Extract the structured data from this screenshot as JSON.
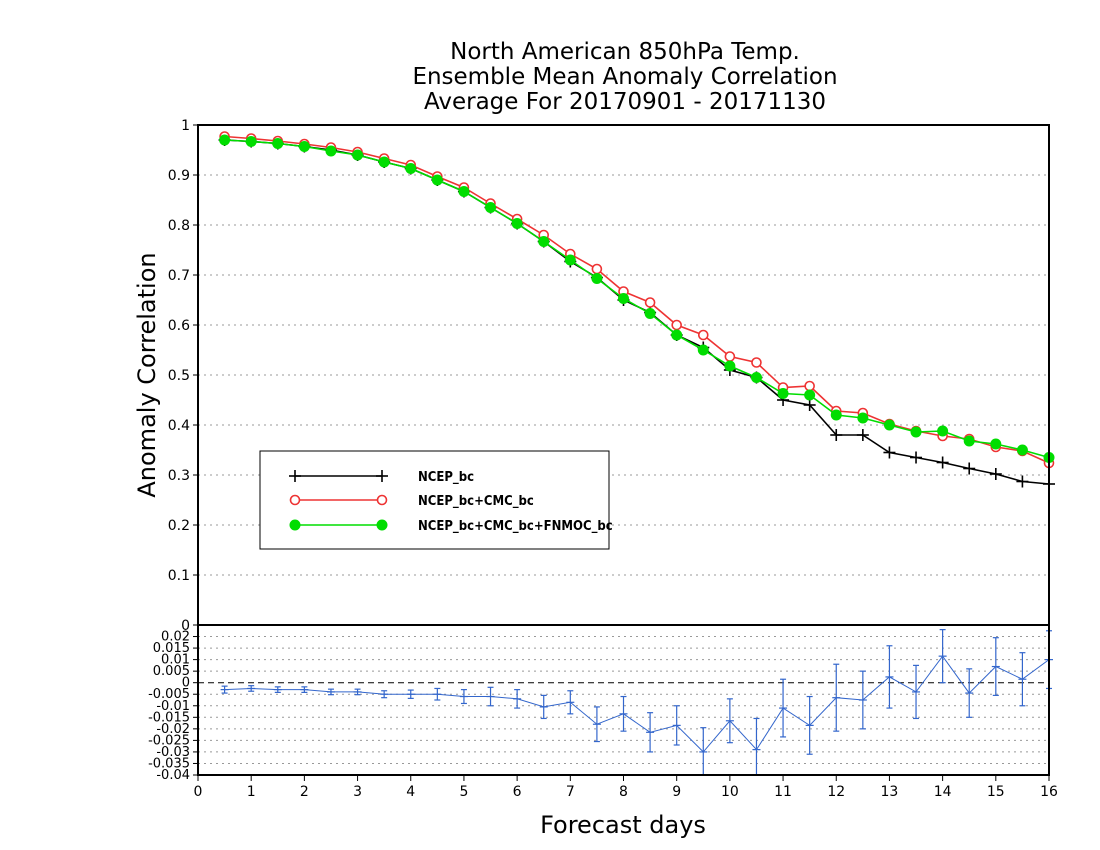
{
  "title_lines": [
    "North American 850hPa Temp.",
    "Ensemble Mean Anomaly Correlation",
    "Average For 20170901 - 20171130"
  ],
  "colors": {
    "ncep": "#000000",
    "cmc": "#ee3333",
    "fnmoc": "#00dd00",
    "diff": "#3366cc"
  },
  "chart_data": [
    {
      "type": "line",
      "xlabel": "Forecast days",
      "ylabel": "Anomaly Correlation",
      "xlim": [
        0,
        16
      ],
      "ylim": [
        0,
        1
      ],
      "grid": true,
      "legend_placement": "lower-left",
      "x_ticks": [
        "0",
        "1",
        "2",
        "3",
        "4",
        "5",
        "6",
        "7",
        "8",
        "9",
        "10",
        "11",
        "12",
        "13",
        "14",
        "15",
        "16"
      ],
      "y_ticks": [
        "0",
        "0.1",
        "0.2",
        "0.3",
        "0.4",
        "0.5",
        "0.6",
        "0.7",
        "0.8",
        "0.9",
        "1"
      ],
      "x": [
        0.5,
        1,
        1.5,
        2,
        2.5,
        3,
        3.5,
        4,
        4.5,
        5,
        5.5,
        6,
        6.5,
        7,
        7.5,
        8,
        8.5,
        9,
        9.5,
        10,
        10.5,
        11,
        11.5,
        12,
        12.5,
        13,
        13.5,
        14,
        14.5,
        15,
        15.5,
        16
      ],
      "series": [
        {
          "name": "NCEP_bc",
          "color_key": "ncep",
          "marker": "plus",
          "values": [
            0.97,
            0.967,
            0.963,
            0.957,
            0.95,
            0.94,
            0.926,
            0.913,
            0.89,
            0.867,
            0.835,
            0.803,
            0.767,
            0.727,
            0.695,
            0.65,
            0.625,
            0.58,
            0.555,
            0.51,
            0.495,
            0.45,
            0.44,
            0.38,
            0.38,
            0.345,
            0.335,
            0.325,
            0.313,
            0.302,
            0.287,
            0.282
          ]
        },
        {
          "name": "NCEP_bc+CMC_bc",
          "color_key": "cmc",
          "marker": "open-circle",
          "values": [
            0.977,
            0.973,
            0.968,
            0.962,
            0.955,
            0.946,
            0.933,
            0.92,
            0.897,
            0.875,
            0.843,
            0.812,
            0.78,
            0.742,
            0.712,
            0.667,
            0.645,
            0.6,
            0.58,
            0.537,
            0.525,
            0.475,
            0.478,
            0.428,
            0.424,
            0.402,
            0.388,
            0.378,
            0.372,
            0.356,
            0.348,
            0.324
          ]
        },
        {
          "name": "NCEP_bc+CMC_bc+FNMOC_bc",
          "color_key": "fnmoc",
          "marker": "filled-circle",
          "values": [
            0.97,
            0.967,
            0.963,
            0.957,
            0.948,
            0.94,
            0.926,
            0.913,
            0.89,
            0.867,
            0.835,
            0.803,
            0.767,
            0.73,
            0.693,
            0.653,
            0.623,
            0.58,
            0.55,
            0.518,
            0.495,
            0.463,
            0.46,
            0.42,
            0.414,
            0.4,
            0.386,
            0.388,
            0.368,
            0.362,
            0.35,
            0.335
          ]
        }
      ]
    },
    {
      "type": "line",
      "xlim": [
        0,
        16
      ],
      "ylim": [
        -0.04,
        0.025
      ],
      "grid": true,
      "y_ticks": [
        "0.02",
        "0.015",
        "0.01",
        "0.005",
        "0",
        "-0.005",
        "-0.01",
        "-0.015",
        "-0.02",
        "-0.025",
        "-0.03",
        "-0.035",
        "-0.04"
      ],
      "series": [
        {
          "color_key": "diff",
          "marker": "plus-with-error-bars",
          "values": [
            -0.003,
            -0.0025,
            -0.003,
            -0.003,
            -0.004,
            -0.004,
            -0.005,
            -0.005,
            -0.005,
            -0.006,
            -0.006,
            -0.007,
            -0.0105,
            -0.0085,
            -0.018,
            -0.0135,
            -0.0215,
            -0.0185,
            -0.03,
            -0.0165,
            -0.029,
            -0.011,
            -0.0185,
            -0.0065,
            -0.0075,
            0.0025,
            -0.004,
            0.0115,
            -0.0045,
            0.007,
            0.0015,
            0.01
          ],
          "err": [
            0.0015,
            0.0012,
            0.0012,
            0.0012,
            0.0012,
            0.0012,
            0.0015,
            0.0018,
            0.0025,
            0.003,
            0.004,
            0.004,
            0.005,
            0.005,
            0.0075,
            0.0075,
            0.0085,
            0.0085,
            0.0105,
            0.0095,
            0.0135,
            0.0125,
            0.0125,
            0.0145,
            0.0125,
            0.0135,
            0.0115,
            0.0115,
            0.0105,
            0.0125,
            0.0115,
            0.0125
          ]
        }
      ]
    }
  ]
}
